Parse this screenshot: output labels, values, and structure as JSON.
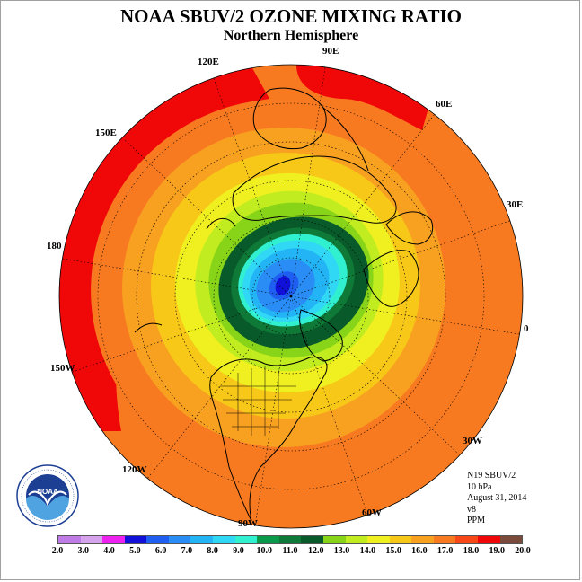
{
  "title": "NOAA SBUV/2 OZONE MIXING RATIO",
  "subtitle": "Northern Hemisphere",
  "longitude_labels": [
    "90E",
    "60E",
    "30E",
    "0",
    "30W",
    "60W",
    "90W",
    "120W",
    "150W",
    "180",
    "150E",
    "120E"
  ],
  "info": {
    "instrument": "N19 SBUV/2",
    "level": "10 hPa",
    "date": "August 31, 2014",
    "version": "v8",
    "units": "PPM"
  },
  "logo": {
    "text": "NOAA",
    "ring_text": "NATIONAL OCEANIC AND ATMOSPHERIC ADMINISTRATION · U.S. DEPARTMENT OF COMMERCE"
  },
  "colorbar": {
    "ticks": [
      "2.0",
      "3.0",
      "4.0",
      "5.0",
      "6.0",
      "7.0",
      "8.0",
      "9.0",
      "10.0",
      "11.0",
      "12.0",
      "13.0",
      "14.0",
      "15.0",
      "16.0",
      "17.0",
      "18.0",
      "19.0",
      "20.0"
    ],
    "colors": [
      "#c07ce6",
      "#d6a3ec",
      "#ee22ee",
      "#1010d8",
      "#1e5ef0",
      "#2a8cf5",
      "#22b4f5",
      "#30d8f5",
      "#30f0d0",
      "#0a9a4a",
      "#0f7a38",
      "#085a2a",
      "#88d418",
      "#c0ec20",
      "#f0f020",
      "#f8c818",
      "#f8a020",
      "#f87a20",
      "#f84818",
      "#f00808",
      "#7a4a3a"
    ]
  }
}
